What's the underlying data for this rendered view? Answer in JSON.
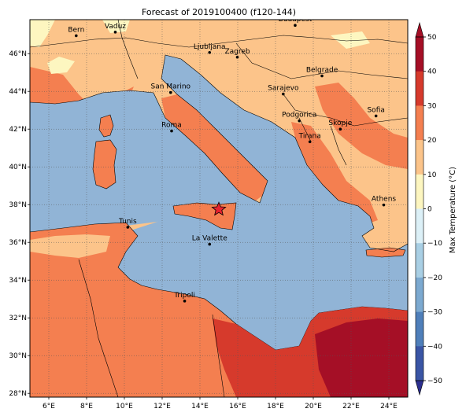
{
  "title": "Forecast of 2019100400 (f120-144)",
  "map": {
    "lon_range": [
      5,
      25
    ],
    "lat_range": [
      27.8,
      47.8
    ],
    "lon_ticks": [
      {
        "value": 6,
        "label": "6°E"
      },
      {
        "value": 8,
        "label": "8°E"
      },
      {
        "value": 10,
        "label": "10°E"
      },
      {
        "value": 12,
        "label": "12°E"
      },
      {
        "value": 14,
        "label": "14°E"
      },
      {
        "value": 16,
        "label": "16°E"
      },
      {
        "value": 18,
        "label": "18°E"
      },
      {
        "value": 20,
        "label": "20°E"
      },
      {
        "value": 22,
        "label": "22°E"
      },
      {
        "value": 24,
        "label": "24°E"
      }
    ],
    "lat_ticks": [
      {
        "value": 28,
        "label": "28°N"
      },
      {
        "value": 30,
        "label": "30°N"
      },
      {
        "value": 32,
        "label": "32°N"
      },
      {
        "value": 34,
        "label": "34°N"
      },
      {
        "value": 36,
        "label": "36°N"
      },
      {
        "value": 38,
        "label": "38°N"
      },
      {
        "value": 40,
        "label": "40°N"
      },
      {
        "value": 42,
        "label": "42°N"
      },
      {
        "value": 44,
        "label": "44°N"
      },
      {
        "value": 46,
        "label": "46°N"
      }
    ],
    "grid": true,
    "cities": [
      {
        "name": "Bern",
        "lon": 7.45,
        "lat": 46.95
      },
      {
        "name": "Vaduz",
        "lon": 9.52,
        "lat": 47.14
      },
      {
        "name": "Budapest",
        "lon": 19.04,
        "lat": 47.5
      },
      {
        "name": "Ljubljana",
        "lon": 14.51,
        "lat": 46.06
      },
      {
        "name": "Zagreb",
        "lon": 15.98,
        "lat": 45.81
      },
      {
        "name": "Belgrade",
        "lon": 20.46,
        "lat": 44.82
      },
      {
        "name": "San Marino",
        "lon": 12.45,
        "lat": 43.94
      },
      {
        "name": "Sarajevo",
        "lon": 18.41,
        "lat": 43.86
      },
      {
        "name": "Sofia",
        "lon": 23.32,
        "lat": 42.7
      },
      {
        "name": "Podgorica",
        "lon": 19.26,
        "lat": 42.44
      },
      {
        "name": "Skopje",
        "lon": 21.43,
        "lat": 42.0
      },
      {
        "name": "Roma",
        "lon": 12.5,
        "lat": 41.9
      },
      {
        "name": "Tirana",
        "lon": 19.82,
        "lat": 41.33
      },
      {
        "name": "Athens",
        "lon": 23.73,
        "lat": 37.98
      },
      {
        "name": "Tunis",
        "lon": 10.18,
        "lat": 36.8
      },
      {
        "name": "La Valette",
        "lon": 14.51,
        "lat": 35.9
      },
      {
        "name": "Tripoli",
        "lon": 13.19,
        "lat": 32.89
      }
    ],
    "marker": {
      "symbol": "star",
      "lon": 15.0,
      "lat": 37.75,
      "color": "#e8222e"
    },
    "sea_color": "#91b4d6"
  },
  "colorbar": {
    "label": "Max Temperature (°C)",
    "min": -50,
    "max": 50,
    "step": 10,
    "extend": "both",
    "tick_labels": [
      "−50",
      "−40",
      "−30",
      "−20",
      "−10",
      "0",
      "10",
      "20",
      "30",
      "40",
      "50"
    ],
    "colors": [
      "#2c2f8f",
      "#3a55a5",
      "#4f7fba",
      "#7ca9d0",
      "#a9cfe4",
      "#dcf0f7",
      "#fdf6c0",
      "#fcc48a",
      "#f47f50",
      "#d63a2c",
      "#a50f26"
    ]
  }
}
